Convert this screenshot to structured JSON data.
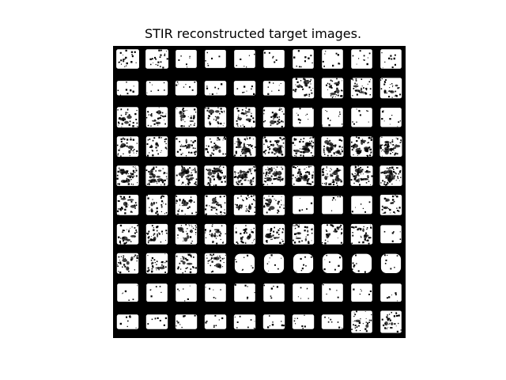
{
  "figure": {
    "title": "STIR reconstructed target images."
  },
  "montage": {
    "rows": 10,
    "cols": 10,
    "background_color": "#000000",
    "foreground_color": "#ffffff",
    "tiles": [
      [
        "cloud",
        "cloud",
        "solid",
        "solid",
        "solid",
        "solid",
        "bright",
        "bright",
        "bright",
        "bright"
      ],
      [
        "bar",
        "bar",
        "bar",
        "bar",
        "bar",
        "bar",
        "noisy",
        "noisy",
        "noisy",
        "noisy"
      ],
      [
        "noisy",
        "noisy",
        "noisy",
        "noisy",
        "noisy",
        "noisy",
        "bright",
        "bright",
        "bright",
        "bright"
      ],
      [
        "noisy",
        "noisy",
        "noisy",
        "noisy",
        "dense",
        "dense",
        "dense",
        "dense",
        "dense",
        "dense"
      ],
      [
        "dense",
        "dense",
        "dense",
        "dense",
        "dense",
        "dense",
        "dense",
        "dense",
        "dense",
        "dense"
      ],
      [
        "noisy",
        "noisy",
        "noisy",
        "noisy",
        "noisy",
        "noisy",
        "solid",
        "solid",
        "solid",
        "noisy"
      ],
      [
        "noisy",
        "noisy",
        "noisy",
        "noisy",
        "noisy",
        "noisy",
        "noisy",
        "noisy",
        "noisy",
        "solid"
      ],
      [
        "noisy",
        "noisy",
        "noisy",
        "noisy",
        "blob",
        "blob",
        "blob",
        "blob",
        "blob",
        "blob"
      ],
      [
        "solid",
        "solid",
        "solid",
        "solid",
        "solid",
        "solid",
        "solid",
        "solid",
        "solid",
        "solid"
      ],
      [
        "bar",
        "bar",
        "bar",
        "bar",
        "bar",
        "bar",
        "bar",
        "bar",
        "square",
        "square"
      ]
    ]
  }
}
